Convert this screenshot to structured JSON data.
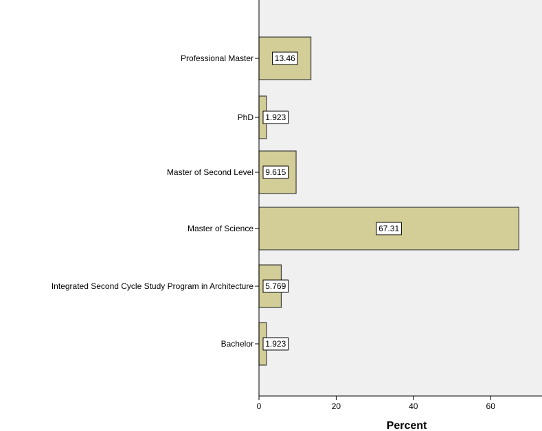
{
  "chart_data": {
    "type": "bar",
    "orientation": "horizontal",
    "title": "",
    "xlabel": "Percent",
    "ylabel": "",
    "categories": [
      "Professional Master",
      "PhD",
      "Master of Second Level",
      "Master of Science",
      "Integrated Second Cycle Study Program in Architecture",
      "Bachelor"
    ],
    "values": [
      13.46,
      1.923,
      9.615,
      67.31,
      5.769,
      1.923
    ],
    "data_labels": [
      "13.46",
      "1.923",
      "9.615",
      "67.31",
      "5.769",
      "1.923"
    ],
    "xlim": [
      0,
      73
    ],
    "xticks": [
      0,
      20,
      40,
      60
    ],
    "xtick_labels": [
      "0",
      "20",
      "40",
      "60"
    ],
    "grid": false,
    "legend": "none",
    "colors": {
      "bar_fill": "#d3ce97",
      "bar_stroke": "#3d3d3d",
      "plot_background": "#f0f0f0",
      "page_background": "#ffffff",
      "label_box": "#ffffff"
    }
  }
}
